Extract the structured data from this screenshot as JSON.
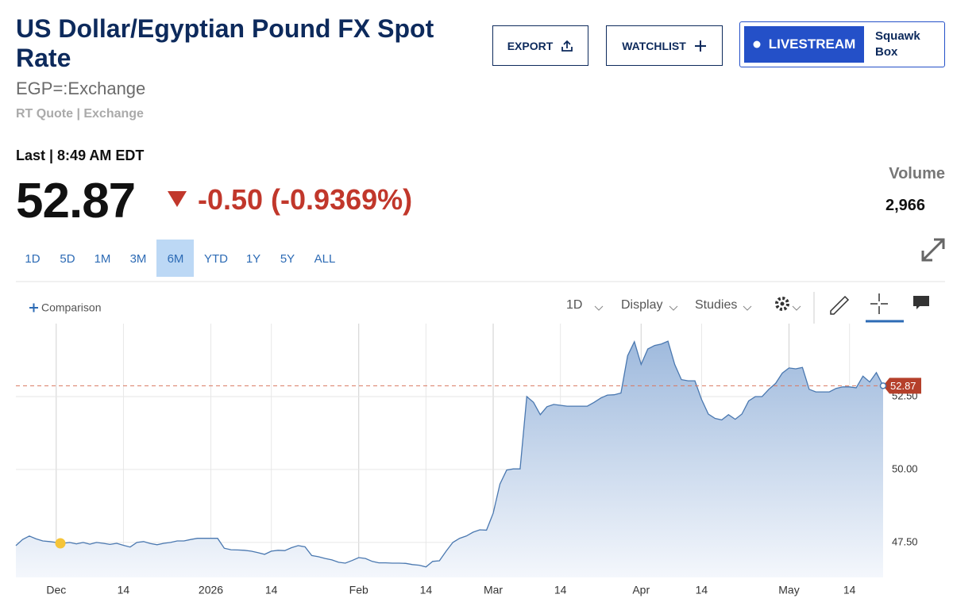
{
  "header": {
    "title": "US Dollar/Egyptian Pound FX Spot Rate",
    "symbol": "EGP=:Exchange",
    "quote_type": "RT Quote | Exchange",
    "buttons": {
      "export": "EXPORT",
      "watchlist": "WATCHLIST",
      "livestream": "LIVESTREAM",
      "squawk": "Squawk Box"
    }
  },
  "quote": {
    "last_label": "Last | 8:49 AM EDT",
    "price": "52.87",
    "change": "-0.50 (-0.9369%)",
    "volume_label": "Volume",
    "volume": "2,966"
  },
  "ranges": {
    "items": [
      "1D",
      "5D",
      "1M",
      "3M",
      "6M",
      "YTD",
      "1Y",
      "5Y",
      "ALL"
    ],
    "active": "6M"
  },
  "toolbar": {
    "comparison": "Comparison",
    "interval": "1D",
    "display": "Display",
    "studies": "Studies"
  },
  "chart_data": {
    "type": "area",
    "color": "#4a78b0",
    "grid": true,
    "categories": [
      null,
      null,
      null,
      null,
      null,
      null,
      "Dec",
      null,
      null,
      null,
      null,
      null,
      null,
      null,
      null,
      null,
      "14",
      null,
      null,
      null,
      null,
      null,
      null,
      null,
      null,
      null,
      null,
      null,
      null,
      "2026",
      null,
      null,
      null,
      null,
      null,
      null,
      null,
      null,
      "14",
      null,
      null,
      null,
      null,
      null,
      null,
      null,
      null,
      null,
      null,
      null,
      null,
      "Feb",
      null,
      null,
      null,
      null,
      null,
      null,
      null,
      null,
      null,
      "14",
      null,
      null,
      null,
      null,
      null,
      null,
      null,
      null,
      null,
      "Mar",
      null,
      null,
      null,
      null,
      null,
      null,
      null,
      null,
      null,
      "14",
      null,
      null,
      null,
      null,
      null,
      null,
      null,
      null,
      null,
      null,
      null,
      "Apr",
      null,
      null,
      null,
      null,
      null,
      null,
      null,
      null,
      "14",
      null,
      null,
      null,
      null,
      null,
      null,
      null,
      null,
      null,
      null,
      null,
      null,
      "May",
      null,
      null,
      null,
      null,
      null,
      null,
      null,
      null,
      "14",
      null,
      null,
      null,
      null,
      null
    ],
    "values": [
      47.39,
      47.6,
      47.72,
      47.62,
      47.55,
      47.53,
      47.5,
      47.47,
      47.5,
      47.45,
      47.5,
      47.44,
      47.5,
      47.47,
      47.43,
      47.47,
      47.4,
      47.34,
      47.5,
      47.53,
      47.46,
      47.42,
      47.47,
      47.5,
      47.55,
      47.55,
      47.6,
      47.64,
      47.64,
      47.64,
      47.64,
      47.3,
      47.25,
      47.24,
      47.23,
      47.2,
      47.15,
      47.09,
      47.2,
      47.23,
      47.22,
      47.32,
      47.39,
      47.35,
      47.05,
      47.01,
      46.95,
      46.9,
      46.82,
      46.79,
      46.88,
      46.98,
      46.95,
      46.85,
      46.8,
      46.8,
      46.79,
      46.79,
      46.78,
      46.74,
      46.72,
      46.66,
      46.85,
      46.87,
      47.2,
      47.5,
      47.64,
      47.72,
      47.85,
      47.93,
      47.92,
      48.5,
      49.5,
      49.98,
      50.02,
      50.02,
      52.5,
      52.3,
      51.88,
      52.15,
      52.23,
      52.2,
      52.17,
      52.17,
      52.17,
      52.17,
      52.3,
      52.45,
      52.55,
      52.56,
      52.62,
      53.9,
      54.38,
      53.6,
      54.13,
      54.25,
      54.3,
      54.4,
      53.6,
      53.08,
      53.04,
      53.04,
      52.4,
      51.9,
      51.75,
      51.7,
      51.88,
      51.72,
      51.9,
      52.35,
      52.5,
      52.5,
      52.75,
      52.95,
      53.3,
      53.48,
      53.45,
      53.5,
      52.75,
      52.66,
      52.66,
      52.66,
      52.78,
      52.83,
      52.83,
      52.8,
      53.2,
      53.0,
      53.32,
      52.87
    ],
    "ylim": [
      46.3,
      55.0
    ],
    "yticks": [
      {
        "value": 47.5,
        "label": "47.50"
      },
      {
        "value": 50,
        "label": "50.00"
      },
      {
        "value": 52.5,
        "label": "52.50"
      }
    ],
    "last_color": "#b5402b"
  }
}
